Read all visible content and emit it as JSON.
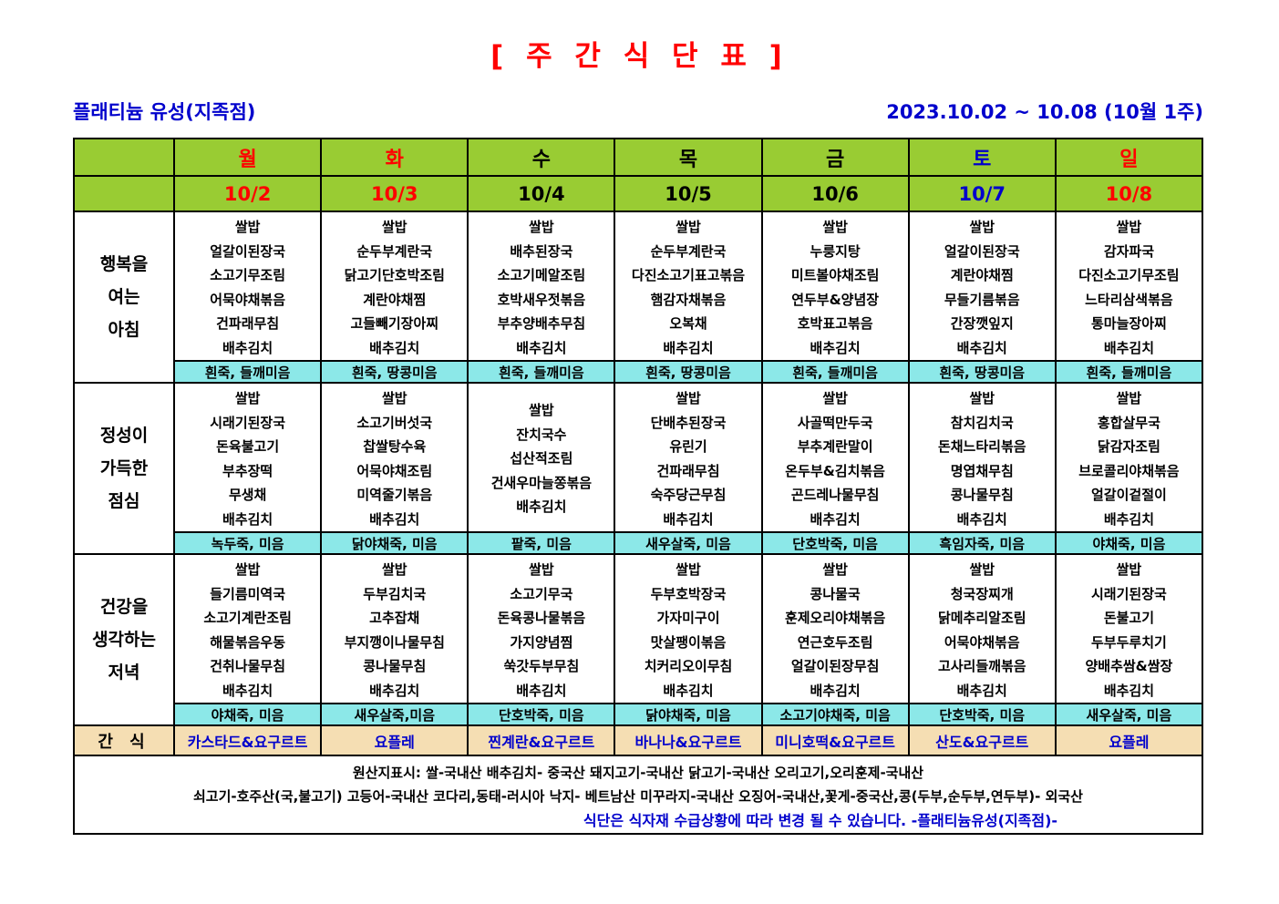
{
  "title": "[ 주 간 식 단 표 ]",
  "header": {
    "store": "플래티늄 유성(지족점)",
    "period": "2023.10.02 ~ 10.08 (10월 1주)"
  },
  "days": [
    {
      "name": "월",
      "date": "10/2",
      "color": "#FF0000"
    },
    {
      "name": "화",
      "date": "10/3",
      "color": "#FF0000"
    },
    {
      "name": "수",
      "date": "10/4",
      "color": "#000000"
    },
    {
      "name": "목",
      "date": "10/5",
      "color": "#000000"
    },
    {
      "name": "금",
      "date": "10/6",
      "color": "#000000"
    },
    {
      "name": "토",
      "date": "10/7",
      "color": "#0000CC"
    },
    {
      "name": "일",
      "date": "10/8",
      "color": "#FF0000"
    }
  ],
  "sections": [
    {
      "label_lines": [
        "행복을",
        "여는",
        "아침"
      ],
      "menus": [
        [
          "쌀밥",
          "얼갈이된장국",
          "소고기무조림",
          "어묵야채볶음",
          "건파래무침",
          "배추김치"
        ],
        [
          "쌀밥",
          "순두부계란국",
          "닭고기단호박조림",
          "계란야채찜",
          "고들빼기장아찌",
          "배추김치"
        ],
        [
          "쌀밥",
          "배추된장국",
          "소고기메알조림",
          "호박새우젓볶음",
          "부추양배추무침",
          "배추김치"
        ],
        [
          "쌀밥",
          "순두부계란국",
          "다진소고기표고볶음",
          "햄감자채볶음",
          "오복채",
          "배추김치"
        ],
        [
          "쌀밥",
          "누룽지탕",
          "미트볼야채조림",
          "연두부&양념장",
          "호박표고볶음",
          "배추김치"
        ],
        [
          "쌀밥",
          "얼갈이된장국",
          "계란야채찜",
          "무들기름볶음",
          "간장깻잎지",
          "배추김치"
        ],
        [
          "쌀밥",
          "감자파국",
          "다진소고기무조림",
          "느타리삼색볶음",
          "통마늘장아찌",
          "배추김치"
        ]
      ],
      "porridge": [
        "흰죽, 들깨미음",
        "흰죽, 땅콩미음",
        "흰죽, 들깨미음",
        "흰죽, 땅콩미음",
        "흰죽, 들깨미음",
        "흰죽, 땅콩미음",
        "흰죽, 들깨미음"
      ]
    },
    {
      "label_lines": [
        "정성이",
        "가득한",
        "점심"
      ],
      "menus": [
        [
          "쌀밥",
          "시래기된장국",
          "돈육불고기",
          "부추장떡",
          "무생채",
          "배추김치"
        ],
        [
          "쌀밥",
          "소고기버섯국",
          "찹쌀탕수육",
          "어묵야채조림",
          "미역줄기볶음",
          "배추김치"
        ],
        [
          "쌀밥",
          "잔치국수",
          "섭산적조림",
          "건새우마늘쫑볶음",
          "배추김치"
        ],
        [
          "쌀밥",
          "단배추된장국",
          "유린기",
          "건파래무침",
          "숙주당근무침",
          "배추김치"
        ],
        [
          "쌀밥",
          "사골떡만두국",
          "부추계란말이",
          "온두부&김치볶음",
          "곤드레나물무침",
          "배추김치"
        ],
        [
          "쌀밥",
          "참치김치국",
          "돈채느타리볶음",
          "명엽채무침",
          "콩나물무침",
          "배추김치"
        ],
        [
          "쌀밥",
          "홍합살무국",
          "닭감자조림",
          "브로콜리야채볶음",
          "얼갈이겉절이",
          "배추김치"
        ]
      ],
      "porridge": [
        "녹두죽, 미음",
        "닭야채죽, 미음",
        "팥죽, 미음",
        "새우살죽, 미음",
        "단호박죽, 미음",
        "흑임자죽, 미음",
        "야채죽, 미음"
      ]
    },
    {
      "label_lines": [
        "건강을",
        "생각하는",
        "저녁"
      ],
      "menus": [
        [
          "쌀밥",
          "들기름미역국",
          "소고기계란조림",
          "해물볶음우동",
          "건취나물무침",
          "배추김치"
        ],
        [
          "쌀밥",
          "두부김치국",
          "고추잡채",
          "부지깽이나물무침",
          "콩나물무침",
          "배추김치"
        ],
        [
          "쌀밥",
          "소고기무국",
          "돈육콩나물볶음",
          "가지양념찜",
          "쑥갓두부무침",
          "배추김치"
        ],
        [
          "쌀밥",
          "두부호박장국",
          "가자미구이",
          "맛살팽이볶음",
          "치커리오이무침",
          "배추김치"
        ],
        [
          "쌀밥",
          "콩나물국",
          "훈제오리야채볶음",
          "연근호두조림",
          "얼갈이된장무침",
          "배추김치"
        ],
        [
          "쌀밥",
          "청국장찌개",
          "닭메추리알조림",
          "어묵야채볶음",
          "고사리들깨볶음",
          "배추김치"
        ],
        [
          "쌀밥",
          "시래기된장국",
          "돈불고기",
          "두부두루치기",
          "양배추쌈&쌈장",
          "배추김치"
        ]
      ],
      "porridge": [
        "야채죽, 미음",
        "새우살죽,미음",
        "단호박죽, 미음",
        "닭야채죽, 미음",
        "소고기야채죽, 미음",
        "단호박죽, 미음",
        "새우살죽, 미음"
      ]
    }
  ],
  "snack": {
    "label": "간 식",
    "items": [
      "카스타드&요구르트",
      "요플레",
      "찐계란&요구르트",
      "바나나&요구르트",
      "미니호떡&요구르트",
      "산도&요구르트",
      "요플레"
    ]
  },
  "footer": {
    "line1": "원산지표시: 쌀-국내산  배추김치- 중국산  돼지고기-국내산  닭고기-국내산  오리고기,오리훈제-국내산",
    "line2": "쇠고기-호주산(국,불고기)   고등어-국내산 코다리,동태-러시아   낙지- 베트남산 미꾸라지-국내산   오징어-국내산,꽃게-중국산,콩(두부,순두부,연두부)- 외국산",
    "line3": "식단은 식자재 수급상황에 따라 변경 될 수 있습니다.  -플래티늄유성(지족점)-"
  },
  "colors": {
    "title_red": "#FF0000",
    "blue": "#0000CC",
    "header_green": "#99CC33",
    "porridge_cyan": "#8CE8E8",
    "snack_tan": "#F5DEB3",
    "border_black": "#000000"
  }
}
